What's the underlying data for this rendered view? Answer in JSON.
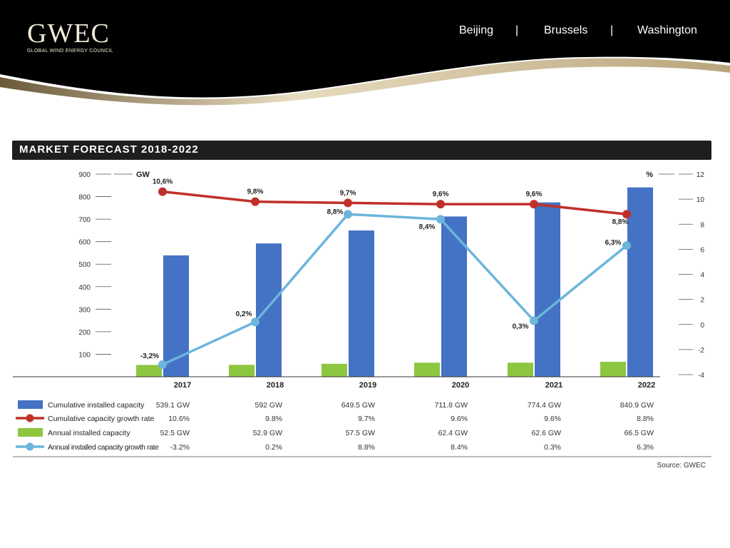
{
  "header": {
    "logo_text": "GWEC",
    "logo_subtitle": "GLOBAL WIND ENERGY COUNCIL",
    "cities": [
      "Beijing",
      "Brussels",
      "Washington"
    ],
    "separator": "|"
  },
  "section_title": "MARKET FORECAST 2018-2022",
  "source": "Source: GWEC",
  "colors": {
    "cumulative_bar": "#4472c4",
    "cumulative_growth": "#c0302a",
    "annual_bar": "#8dc63f",
    "annual_growth": "#6cb5db",
    "header_bg": "#000000",
    "gold_accent": "#c9b58a"
  },
  "chart_data": {
    "type": "bar",
    "categories": [
      "2017",
      "2018",
      "2019",
      "2020",
      "2021",
      "2022"
    ],
    "left_axis": {
      "unit": "GW",
      "ylim": [
        0,
        900
      ],
      "ticks": [
        100,
        200,
        300,
        400,
        500,
        600,
        700,
        800,
        900
      ]
    },
    "right_axis": {
      "unit": "%",
      "ylim": [
        -4,
        12
      ],
      "ticks": [
        -4,
        -2,
        0,
        2,
        4,
        6,
        8,
        10,
        12
      ]
    },
    "series": [
      {
        "name": "Cumulative installed capacity",
        "type": "bar",
        "axis": "left",
        "values": [
          539.1,
          592,
          649.5,
          711.8,
          774.4,
          840.9
        ],
        "table": [
          "539.1 GW",
          "592 GW",
          "649.5 GW",
          "711.8 GW",
          "774.4 GW",
          "840.9 GW"
        ]
      },
      {
        "name": "Cumulative capacity growth rate",
        "type": "line",
        "axis": "right",
        "values": [
          10.6,
          9.8,
          9.7,
          9.6,
          9.6,
          8.8
        ],
        "labels": [
          "10,6%",
          "9,8%",
          "9,7%",
          "9,6%",
          "9,6%",
          "8,8%"
        ],
        "table": [
          "10.6%",
          "9.8%",
          "9.7%",
          "9.6%",
          "9.6%",
          "8.8%"
        ]
      },
      {
        "name": "Annual installed capacity",
        "type": "bar",
        "axis": "left",
        "values": [
          52.5,
          52.9,
          57.5,
          62.4,
          62.6,
          66.5
        ],
        "table": [
          "52.5 GW",
          "52.9 GW",
          "57.5 GW",
          "62.4 GW",
          "62.6 GW",
          "66.5 GW"
        ]
      },
      {
        "name": "Annual installed capacity growth rate",
        "type": "line",
        "axis": "right",
        "values": [
          -3.2,
          0.2,
          8.8,
          8.4,
          0.3,
          6.3
        ],
        "labels": [
          "-3,2%",
          "0,2%",
          "8,8%",
          "8,4%",
          "0,3%",
          "6,3%"
        ],
        "table": [
          "-3.2%",
          "0.2%",
          "8.8%",
          "8.4%",
          "0.3%",
          "6.3%"
        ]
      }
    ]
  }
}
